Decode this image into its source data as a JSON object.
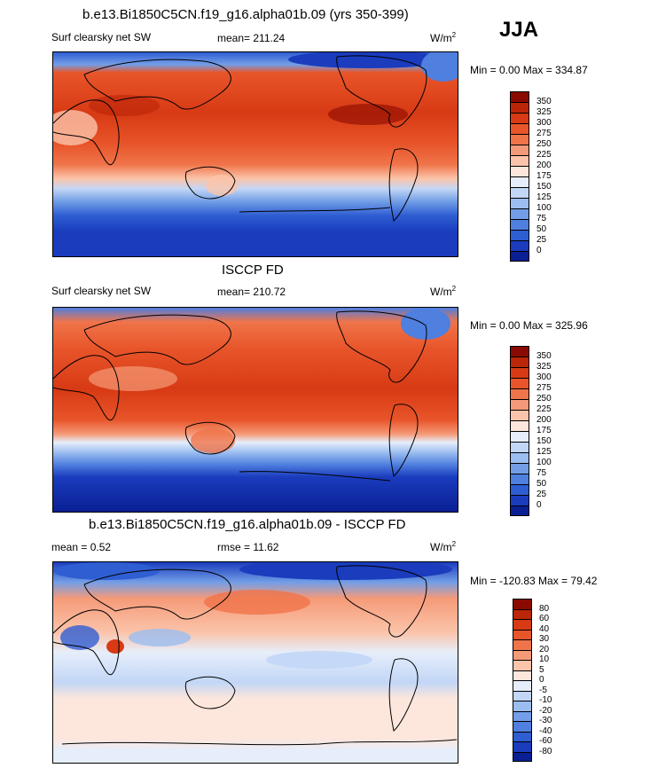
{
  "season": "JJA",
  "panels": [
    {
      "id": "model",
      "title": "b.e13.Bi1850C5CN.f19_g16.alpha01b.09 (yrs 350-399)",
      "left_label": "Surf clearsky net SW",
      "center_label": "mean= 211.24",
      "units_label": "W/m",
      "units_sup": "2",
      "minmax": "Min =   0.00 Max = 334.87",
      "colorbar": {
        "colors": [
          "#8b0a00",
          "#bb2508",
          "#d73a14",
          "#e8552a",
          "#f0744a",
          "#f59a78",
          "#fbc4aa",
          "#fde6dc",
          "#e6eefb",
          "#c2d6f6",
          "#9bbdf0",
          "#739ee7",
          "#4f7fdf",
          "#2f5ed3",
          "#1a3cbd",
          "#0a1f94"
        ],
        "labels": [
          "350",
          "325",
          "300",
          "275",
          "250",
          "225",
          "200",
          "175",
          "150",
          "125",
          "100",
          "75",
          "50",
          "25",
          "0"
        ]
      }
    },
    {
      "id": "obs",
      "title": "ISCCP FD",
      "left_label": "Surf clearsky net SW",
      "center_label": "mean= 210.72",
      "units_label": "W/m",
      "units_sup": "2",
      "minmax": "Min =   0.00 Max = 325.96",
      "colorbar": {
        "colors": [
          "#8b0a00",
          "#bb2508",
          "#d73a14",
          "#e8552a",
          "#f0744a",
          "#f59a78",
          "#fbc4aa",
          "#fde6dc",
          "#e6eefb",
          "#c2d6f6",
          "#9bbdf0",
          "#739ee7",
          "#4f7fdf",
          "#2f5ed3",
          "#1a3cbd",
          "#0a1f94"
        ],
        "labels": [
          "350",
          "325",
          "300",
          "275",
          "250",
          "225",
          "200",
          "175",
          "150",
          "125",
          "100",
          "75",
          "50",
          "25",
          "0"
        ]
      }
    },
    {
      "id": "diff",
      "title": "b.e13.Bi1850C5CN.f19_g16.alpha01b.09 - ISCCP FD",
      "left_label": "mean =   0.52",
      "center_label": "rmse =  11.62",
      "units_label": "W/m",
      "units_sup": "2",
      "minmax": "Min = -120.83 Max =  79.42",
      "colorbar": {
        "colors": [
          "#8b0a00",
          "#bb2508",
          "#d73a14",
          "#e8552a",
          "#f0744a",
          "#f59a78",
          "#fbc4aa",
          "#fde6dc",
          "#e6eefb",
          "#c2d6f6",
          "#9bbdf0",
          "#739ee7",
          "#4f7fdf",
          "#2f5ed3",
          "#1a3cbd",
          "#0a1f94"
        ],
        "labels": [
          "80",
          "60",
          "40",
          "30",
          "20",
          "10",
          "5",
          "0",
          "-5",
          "-10",
          "-20",
          "-30",
          "-40",
          "-60",
          "-80"
        ]
      }
    }
  ]
}
